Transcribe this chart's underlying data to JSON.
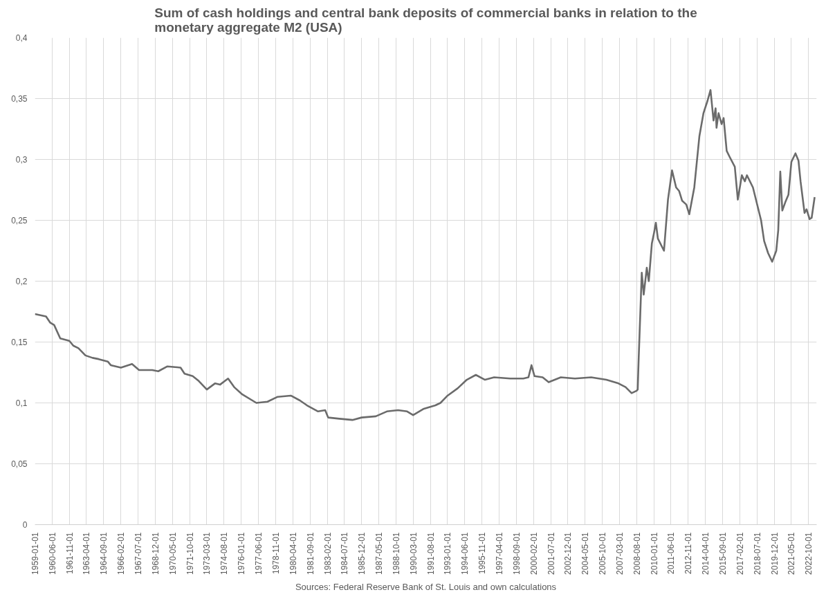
{
  "chart_data": {
    "type": "line",
    "title": "Sum of cash holdings and central bank deposits of commercial banks in relation to the monetary aggregate M2 (USA)",
    "annotations": [
      "Sources: Federal Reserve Bank of St. Louis and own calculations"
    ],
    "grid": true,
    "marker": "none",
    "line_style": "solid",
    "xlim": [
      "1959-01-01",
      "2023-06-01"
    ],
    "xticks": [
      "1959-01-01",
      "1960-06-01",
      "1961-11-01",
      "1963-04-01",
      "1964-09-01",
      "1966-02-01",
      "1967-07-01",
      "1968-12-01",
      "1970-05-01",
      "1971-10-01",
      "1973-03-01",
      "1974-08-01",
      "1976-01-01",
      "1977-06-01",
      "1978-11-01",
      "1980-04-01",
      "1981-09-01",
      "1983-02-01",
      "1984-07-01",
      "1985-12-01",
      "1987-05-01",
      "1988-10-01",
      "1990-03-01",
      "1991-08-01",
      "1993-01-01",
      "1994-06-01",
      "1995-11-01",
      "1997-04-01",
      "1998-09-01",
      "2000-02-01",
      "2001-07-01",
      "2002-12-01",
      "2004-05-01",
      "2005-10-01",
      "2007-03-01",
      "2008-08-01",
      "2010-01-01",
      "2011-06-01",
      "2012-11-01",
      "2014-04-01",
      "2015-09-01",
      "2017-02-01",
      "2018-07-01",
      "2019-12-01",
      "2021-05-01",
      "2022-10-01"
    ],
    "ylim": [
      0,
      0.4
    ],
    "yticks": [
      0,
      {
        "value": 0.05,
        "label": "0,05"
      },
      {
        "value": 0.1,
        "label": "0,1"
      },
      {
        "value": 0.15,
        "label": "0,15"
      },
      {
        "value": 0.2,
        "label": "0,2"
      },
      {
        "value": 0.25,
        "label": "0,25"
      },
      {
        "value": 0.3,
        "label": "0,3"
      },
      {
        "value": 0.35,
        "label": "0,35"
      },
      {
        "value": 0.4,
        "label": "0,4"
      }
    ],
    "x": [
      "1959-01",
      "1959-12",
      "1960-04",
      "1960-08",
      "1961-02",
      "1961-11",
      "1962-03",
      "1962-08",
      "1963-03",
      "1963-10",
      "1964-04",
      "1965-01",
      "1965-04",
      "1966-02",
      "1967-01",
      "1967-08",
      "1968-09",
      "1969-03",
      "1969-12",
      "1971-01",
      "1971-05",
      "1972-01",
      "1972-07",
      "1973-03",
      "1973-11",
      "1974-04",
      "1974-12",
      "1975-06",
      "1976-02",
      "1977-04",
      "1978-03",
      "1979-01",
      "1980-02",
      "1980-11",
      "1981-06",
      "1982-05",
      "1982-12",
      "1983-03",
      "1984-02",
      "1985-03",
      "1985-12",
      "1987-02",
      "1988-01",
      "1988-12",
      "1989-09",
      "1990-03",
      "1991-01",
      "1992-01",
      "1992-06",
      "1993-01",
      "1993-11",
      "1994-08",
      "1995-05",
      "1996-02",
      "1996-11",
      "1998-03",
      "1999-04",
      "1999-09",
      "1999-12",
      "2000-03",
      "2000-11",
      "2001-05",
      "2002-05",
      "2003-07",
      "2004-11",
      "2006-02",
      "2007-02",
      "2007-09",
      "2008-03",
      "2008-08",
      "2008-09",
      "2008-10",
      "2009-01",
      "2009-03",
      "2009-06",
      "2009-08",
      "2009-11",
      "2010-01",
      "2010-03",
      "2010-05",
      "2010-11",
      "2011-03",
      "2011-07",
      "2011-11",
      "2012-02",
      "2012-05",
      "2012-09",
      "2012-12",
      "2013-05",
      "2013-10",
      "2014-02",
      "2014-06",
      "2014-09",
      "2014-12",
      "2015-02",
      "2015-03",
      "2015-05",
      "2015-08",
      "2015-10",
      "2016-01",
      "2016-04",
      "2016-09",
      "2016-12",
      "2017-04",
      "2017-07",
      "2017-09",
      "2018-03",
      "2018-11",
      "2019-02",
      "2019-06",
      "2019-10",
      "2020-02",
      "2020-04",
      "2020-06",
      "2020-08",
      "2020-11",
      "2021-02",
      "2021-05",
      "2021-09",
      "2021-12",
      "2022-02",
      "2022-06",
      "2022-08",
      "2022-11",
      "2023-01",
      "2023-04"
    ],
    "series": [
      {
        "color": "#6b6b6b",
        "values": [
          0.173,
          0.171,
          0.166,
          0.164,
          0.153,
          0.151,
          0.147,
          0.145,
          0.139,
          0.137,
          0.136,
          0.134,
          0.131,
          0.129,
          0.132,
          0.127,
          0.127,
          0.126,
          0.13,
          0.129,
          0.124,
          0.122,
          0.118,
          0.111,
          0.116,
          0.115,
          0.12,
          0.113,
          0.107,
          0.1,
          0.101,
          0.105,
          0.106,
          0.102,
          0.098,
          0.093,
          0.094,
          0.088,
          0.087,
          0.086,
          0.088,
          0.089,
          0.093,
          0.094,
          0.093,
          0.09,
          0.095,
          0.098,
          0.1,
          0.106,
          0.112,
          0.119,
          0.123,
          0.119,
          0.121,
          0.12,
          0.12,
          0.121,
          0.131,
          0.122,
          0.121,
          0.117,
          0.121,
          0.12,
          0.121,
          0.119,
          0.116,
          0.113,
          0.108,
          0.11,
          0.111,
          0.137,
          0.207,
          0.189,
          0.211,
          0.2,
          0.231,
          0.239,
          0.248,
          0.235,
          0.225,
          0.267,
          0.291,
          0.277,
          0.274,
          0.266,
          0.263,
          0.255,
          0.277,
          0.319,
          0.338,
          0.348,
          0.357,
          0.332,
          0.342,
          0.326,
          0.338,
          0.329,
          0.334,
          0.307,
          0.302,
          0.294,
          0.267,
          0.287,
          0.282,
          0.287,
          0.277,
          0.25,
          0.233,
          0.223,
          0.216,
          0.225,
          0.242,
          0.29,
          0.258,
          0.265,
          0.271,
          0.298,
          0.305,
          0.299,
          0.282,
          0.256,
          0.259,
          0.251,
          0.252,
          0.269
        ]
      }
    ]
  }
}
